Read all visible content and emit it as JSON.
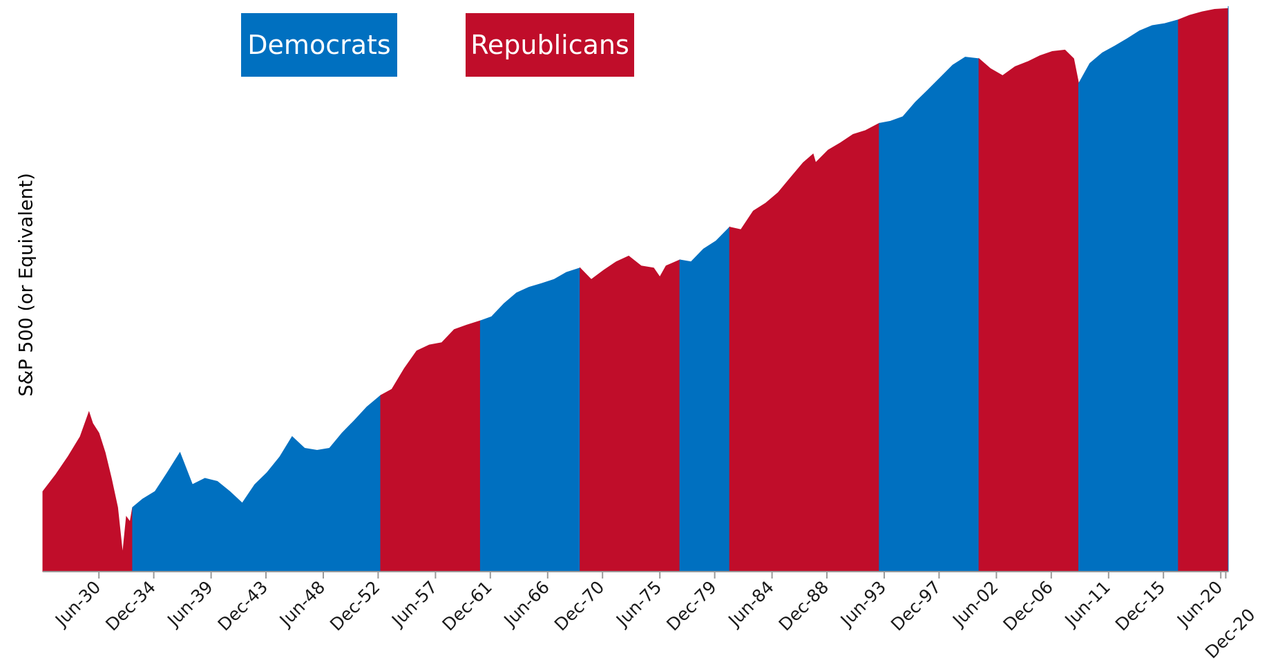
{
  "chart_data": {
    "type": "area",
    "title": "",
    "xlabel": "",
    "ylabel": "S&P 500 (or Equivalent)",
    "log_scale": true,
    "grid": false,
    "legend_placement": "top-left",
    "legend": [
      {
        "party": "Democrats",
        "color": "#0070c0"
      },
      {
        "party": "Republicans",
        "color": "#c00d2a"
      }
    ],
    "colors": {
      "Democrats": "#0070c0",
      "Republicans": "#c00d2a"
    },
    "xlim": [
      1926.0,
      2021.1
    ],
    "ylim": [
      4,
      5000
    ],
    "x_ticks": [
      {
        "label": "Jun-30",
        "x": 1930.5
      },
      {
        "label": "Dec-34",
        "x": 1934.9
      },
      {
        "label": "Jun-39",
        "x": 1939.5
      },
      {
        "label": "Dec-43",
        "x": 1943.9
      },
      {
        "label": "Jun-48",
        "x": 1948.5
      },
      {
        "label": "Dec-52",
        "x": 1952.9
      },
      {
        "label": "Jun-57",
        "x": 1957.5
      },
      {
        "label": "Dec-61",
        "x": 1961.9
      },
      {
        "label": "Jun-66",
        "x": 1966.5
      },
      {
        "label": "Dec-70",
        "x": 1970.9
      },
      {
        "label": "Jun-75",
        "x": 1975.5
      },
      {
        "label": "Dec-79",
        "x": 1979.9
      },
      {
        "label": "Jun-84",
        "x": 1984.5
      },
      {
        "label": "Dec-88",
        "x": 1988.9
      },
      {
        "label": "Jun-93",
        "x": 1993.5
      },
      {
        "label": "Dec-97",
        "x": 1997.9
      },
      {
        "label": "Jun-02",
        "x": 2002.5
      },
      {
        "label": "Dec-06",
        "x": 2006.9
      },
      {
        "label": "Jun-11",
        "x": 2011.5
      },
      {
        "label": "Dec-15",
        "x": 2015.9
      },
      {
        "label": "Jun-20",
        "x": 2020.5
      },
      {
        "label": "Dec-20",
        "x": 2020.9
      }
    ],
    "series": [
      {
        "party": "Republicans",
        "start": 1926.0,
        "end": 1933.2,
        "points": [
          [
            1926.0,
            11
          ],
          [
            1927.0,
            13.5
          ],
          [
            1928.0,
            17
          ],
          [
            1929.0,
            22
          ],
          [
            1929.7,
            30
          ],
          [
            1930.0,
            26
          ],
          [
            1930.5,
            23
          ],
          [
            1931.0,
            18
          ],
          [
            1931.5,
            13
          ],
          [
            1932.0,
            9
          ],
          [
            1932.4,
            5
          ],
          [
            1932.7,
            8
          ],
          [
            1933.0,
            7.5
          ],
          [
            1933.2,
            9
          ]
        ]
      },
      {
        "party": "Democrats",
        "start": 1933.2,
        "end": 1953.1,
        "points": [
          [
            1933.2,
            9
          ],
          [
            1934.0,
            10
          ],
          [
            1935.0,
            11
          ],
          [
            1936.0,
            14
          ],
          [
            1937.0,
            18
          ],
          [
            1938.0,
            12
          ],
          [
            1939.0,
            13
          ],
          [
            1940.0,
            12.5
          ],
          [
            1941.0,
            11
          ],
          [
            1942.0,
            9.5
          ],
          [
            1943.0,
            12
          ],
          [
            1944.0,
            14
          ],
          [
            1945.0,
            17
          ],
          [
            1946.0,
            22
          ],
          [
            1947.0,
            19
          ],
          [
            1948.0,
            18.5
          ],
          [
            1949.0,
            19
          ],
          [
            1950.0,
            23
          ],
          [
            1951.0,
            27
          ],
          [
            1952.0,
            32
          ],
          [
            1953.1,
            37
          ]
        ]
      },
      {
        "party": "Republicans",
        "start": 1953.1,
        "end": 1961.1,
        "points": [
          [
            1953.1,
            37
          ],
          [
            1954.0,
            40
          ],
          [
            1955.0,
            52
          ],
          [
            1956.0,
            65
          ],
          [
            1957.0,
            70
          ],
          [
            1958.0,
            72
          ],
          [
            1959.0,
            85
          ],
          [
            1960.0,
            90
          ],
          [
            1961.1,
            95
          ]
        ]
      },
      {
        "party": "Democrats",
        "start": 1961.1,
        "end": 1969.1,
        "points": [
          [
            1961.1,
            95
          ],
          [
            1962.0,
            100
          ],
          [
            1963.0,
            118
          ],
          [
            1964.0,
            135
          ],
          [
            1965.0,
            145
          ],
          [
            1966.0,
            152
          ],
          [
            1967.0,
            160
          ],
          [
            1968.0,
            175
          ],
          [
            1969.1,
            185
          ]
        ]
      },
      {
        "party": "Republicans",
        "start": 1969.1,
        "end": 1977.1,
        "points": [
          [
            1969.1,
            185
          ],
          [
            1970.0,
            160
          ],
          [
            1971.0,
            180
          ],
          [
            1972.0,
            200
          ],
          [
            1973.0,
            215
          ],
          [
            1974.0,
            190
          ],
          [
            1975.0,
            185
          ],
          [
            1975.5,
            165
          ],
          [
            1976.0,
            190
          ],
          [
            1977.1,
            205
          ]
        ]
      },
      {
        "party": "Democrats",
        "start": 1977.1,
        "end": 1981.1,
        "points": [
          [
            1977.1,
            205
          ],
          [
            1978.0,
            200
          ],
          [
            1979.0,
            235
          ],
          [
            1980.0,
            260
          ],
          [
            1981.1,
            310
          ]
        ]
      },
      {
        "party": "Republicans",
        "start": 1981.1,
        "end": 1993.1,
        "points": [
          [
            1981.1,
            310
          ],
          [
            1982.0,
            300
          ],
          [
            1983.0,
            380
          ],
          [
            1984.0,
            420
          ],
          [
            1985.0,
            480
          ],
          [
            1986.0,
            580
          ],
          [
            1987.0,
            700
          ],
          [
            1987.8,
            780
          ],
          [
            1988.0,
            700
          ],
          [
            1989.0,
            820
          ],
          [
            1990.0,
            900
          ],
          [
            1991.0,
            1000
          ],
          [
            1992.0,
            1050
          ],
          [
            1993.1,
            1150
          ]
        ]
      },
      {
        "party": "Democrats",
        "start": 1993.1,
        "end": 2001.1,
        "points": [
          [
            1993.1,
            1150
          ],
          [
            1994.0,
            1180
          ],
          [
            1995.0,
            1250
          ],
          [
            1996.0,
            1500
          ],
          [
            1997.0,
            1750
          ],
          [
            1998.0,
            2050
          ],
          [
            1999.0,
            2400
          ],
          [
            2000.0,
            2650
          ],
          [
            2001.1,
            2600
          ]
        ]
      },
      {
        "party": "Republicans",
        "start": 2001.1,
        "end": 2009.1,
        "points": [
          [
            2001.1,
            2600
          ],
          [
            2002.0,
            2300
          ],
          [
            2003.0,
            2100
          ],
          [
            2004.0,
            2350
          ],
          [
            2005.0,
            2500
          ],
          [
            2006.0,
            2700
          ],
          [
            2007.0,
            2850
          ],
          [
            2008.0,
            2900
          ],
          [
            2008.7,
            2600
          ],
          [
            2009.1,
            1900
          ]
        ]
      },
      {
        "party": "Democrats",
        "start": 2009.1,
        "end": 2017.1,
        "points": [
          [
            2009.1,
            1900
          ],
          [
            2010.0,
            2450
          ],
          [
            2011.0,
            2800
          ],
          [
            2012.0,
            3050
          ],
          [
            2013.0,
            3350
          ],
          [
            2014.0,
            3700
          ],
          [
            2015.0,
            3950
          ],
          [
            2016.0,
            4050
          ],
          [
            2017.1,
            4250
          ]
        ]
      },
      {
        "party": "Republicans",
        "start": 2017.1,
        "end": 2021.1,
        "points": [
          [
            2017.1,
            4250
          ],
          [
            2018.0,
            4500
          ],
          [
            2019.0,
            4700
          ],
          [
            2020.0,
            4850
          ],
          [
            2021.1,
            4900
          ]
        ]
      },
      {
        "party": "Democrats",
        "start": 2021.1,
        "end": 2021.1,
        "points": [
          [
            2021.1,
            4900
          ],
          [
            2021.1,
            5050
          ]
        ]
      }
    ]
  }
}
